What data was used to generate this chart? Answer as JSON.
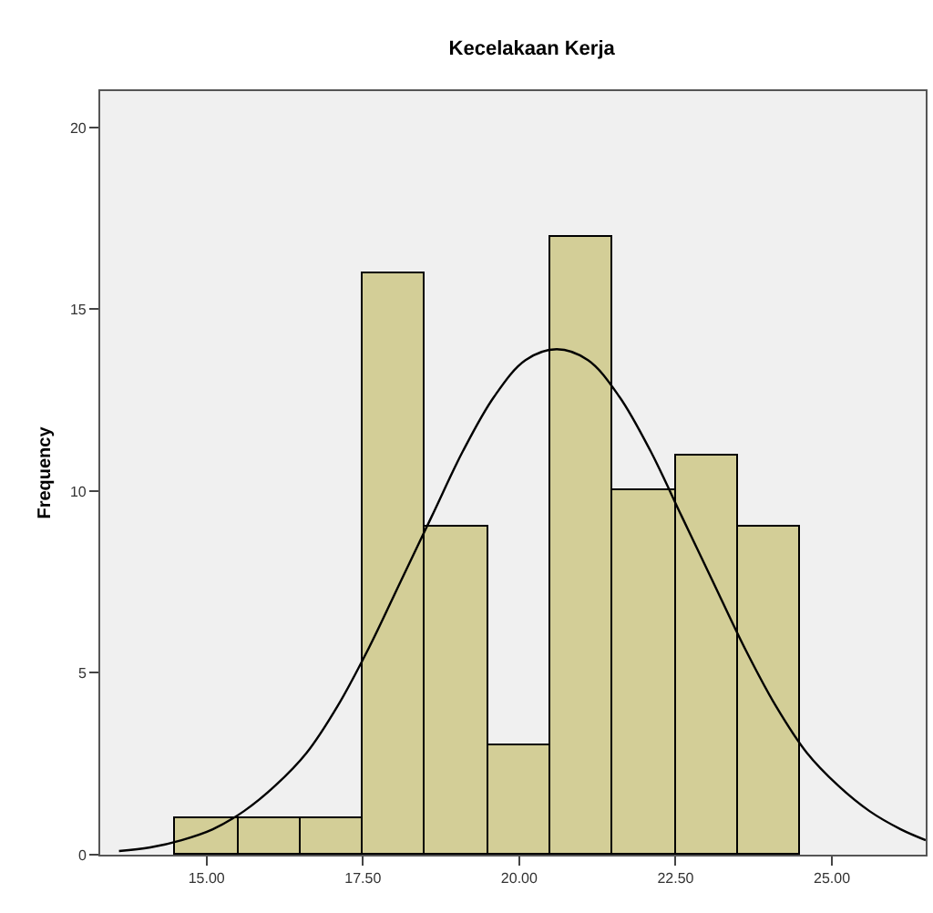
{
  "chart_data": {
    "type": "histogram",
    "title": "Kecelakaan Kerja",
    "ylabel": "Frequency",
    "bins": [
      14.5,
      15.5,
      16.5,
      17.5,
      18.5,
      19.5,
      20.5,
      21.5,
      22.5,
      23.5,
      24.5
    ],
    "values": [
      1,
      1,
      1,
      16,
      9,
      3,
      17,
      10,
      11,
      9
    ],
    "color": "#d3ce97",
    "series": [
      {
        "type": "line",
        "color": "#000000",
        "x": [
          13.6,
          14.1,
          14.6,
          15.1,
          15.6,
          16.1,
          16.6,
          17.1,
          17.6,
          18.1,
          18.6,
          19.1,
          19.6,
          20.1,
          20.6,
          21.1,
          21.6,
          22.1,
          22.6,
          23.1,
          23.6,
          24.1,
          24.6,
          25.1,
          25.6,
          26.1,
          26.5
        ],
        "values": [
          0.1,
          0.2,
          0.4,
          0.7,
          1.2,
          1.9,
          2.8,
          4.1,
          5.7,
          7.5,
          9.3,
          11.1,
          12.6,
          13.6,
          13.9,
          13.6,
          12.6,
          11.1,
          9.3,
          7.5,
          5.7,
          4.1,
          2.8,
          1.9,
          1.2,
          0.7,
          0.4
        ]
      }
    ],
    "xlim": [
      13.3,
      26.5
    ],
    "ylim": [
      0,
      21
    ],
    "xticks": [
      {
        "value": 15,
        "label": "15.00"
      },
      {
        "value": 17.5,
        "label": "17.50"
      },
      {
        "value": 20,
        "label": "20.00"
      },
      {
        "value": 22.5,
        "label": "22.50"
      },
      {
        "value": 25,
        "label": "25.00"
      }
    ],
    "yticks": [
      0,
      5,
      10,
      15,
      20
    ],
    "grid": false
  }
}
